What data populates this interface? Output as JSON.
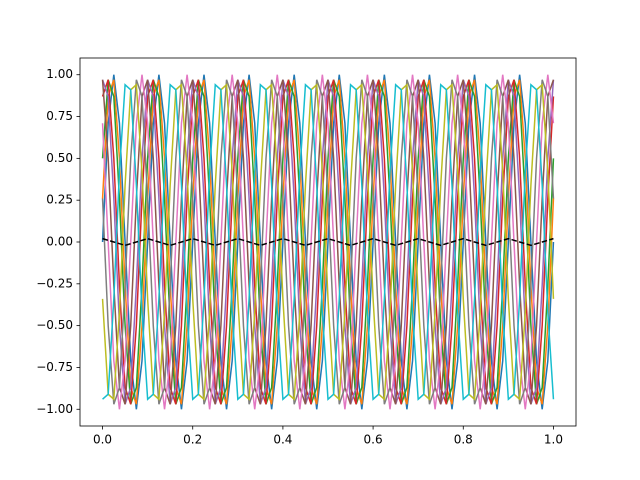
{
  "chart_data": {
    "type": "line",
    "x": [
      0,
      0.0125,
      0.025,
      0.0375,
      0.05,
      0.0625,
      0.075,
      0.0875,
      0.1,
      0.1125,
      0.125,
      0.1375,
      0.15,
      0.1625,
      0.175,
      0.1875,
      0.2,
      0.2125,
      0.225,
      0.2375,
      0.25,
      0.2625,
      0.275,
      0.2875,
      0.3,
      0.3125,
      0.325,
      0.3375,
      0.35,
      0.3625,
      0.375,
      0.3875,
      0.4,
      0.4125,
      0.425,
      0.4375,
      0.45,
      0.4625,
      0.475,
      0.4875,
      0.5,
      0.5125,
      0.525,
      0.5375,
      0.55,
      0.5625,
      0.575,
      0.5875,
      0.6,
      0.6125,
      0.625,
      0.6375,
      0.65,
      0.6625,
      0.675,
      0.6875,
      0.7,
      0.7125,
      0.725,
      0.7375,
      0.75,
      0.7625,
      0.775,
      0.7875,
      0.8,
      0.8125,
      0.825,
      0.8375,
      0.85,
      0.8625,
      0.875,
      0.8875,
      0.9,
      0.9125,
      0.925,
      0.9375,
      0.95,
      0.9625,
      0.975,
      0.9875,
      1
    ],
    "series": [
      {
        "color": "#1f77b4",
        "values": [
          0,
          0.71,
          1,
          0.71,
          0,
          -0.71,
          -1,
          -0.71,
          0,
          0.71,
          1,
          0.71,
          0,
          -0.71,
          -1,
          -0.71,
          0,
          0.71,
          1,
          0.71,
          0,
          -0.71,
          -1,
          -0.71,
          0,
          0.71,
          1,
          0.71,
          0,
          -0.71,
          -1,
          -0.71,
          0,
          0.71,
          1,
          0.71,
          0,
          -0.71,
          -1,
          -0.71,
          0,
          0.71,
          1,
          0.71,
          0,
          -0.71,
          -1,
          -0.71,
          0,
          0.71,
          1,
          0.71,
          0,
          -0.71,
          -1,
          -0.71,
          0,
          0.71,
          1,
          0.71,
          0,
          -0.71,
          -1,
          -0.71,
          0,
          0.71,
          1,
          0.71,
          0,
          -0.71,
          -1,
          -0.71,
          0,
          0.71,
          1,
          0.71,
          0,
          -0.71,
          -1,
          -0.71,
          0
        ]
      },
      {
        "color": "#ff7f0e",
        "values": [
          0.26,
          0.87,
          0.97,
          0.5,
          -0.26,
          -0.87,
          -0.97,
          -0.5,
          0.26,
          0.87,
          0.97,
          0.5,
          -0.26,
          -0.87,
          -0.97,
          -0.5,
          0.26,
          0.87,
          0.97,
          0.5,
          -0.26,
          -0.87,
          -0.97,
          -0.5,
          0.26,
          0.87,
          0.97,
          0.5,
          -0.26,
          -0.87,
          -0.97,
          -0.5,
          0.26,
          0.87,
          0.97,
          0.5,
          -0.26,
          -0.87,
          -0.97,
          -0.5,
          0.26,
          0.87,
          0.97,
          0.5,
          -0.26,
          -0.87,
          -0.97,
          -0.5,
          0.26,
          0.87,
          0.97,
          0.5,
          -0.26,
          -0.87,
          -0.97,
          -0.5,
          0.26,
          0.87,
          0.97,
          0.5,
          -0.26,
          -0.87,
          -0.97,
          -0.5,
          0.26,
          0.87,
          0.97,
          0.5,
          -0.26,
          -0.87,
          -0.97,
          -0.5,
          0.26,
          0.87,
          0.97,
          0.5,
          -0.26,
          -0.87,
          -0.97,
          -0.5,
          0.26
        ]
      },
      {
        "color": "#2ca02c",
        "values": [
          0.5,
          0.97,
          0.87,
          0.26,
          -0.5,
          -0.97,
          -0.87,
          -0.26,
          0.5,
          0.97,
          0.87,
          0.26,
          -0.5,
          -0.97,
          -0.87,
          -0.26,
          0.5,
          0.97,
          0.87,
          0.26,
          -0.5,
          -0.97,
          -0.87,
          -0.26,
          0.5,
          0.97,
          0.87,
          0.26,
          -0.5,
          -0.97,
          -0.87,
          -0.26,
          0.5,
          0.97,
          0.87,
          0.26,
          -0.5,
          -0.97,
          -0.87,
          -0.26,
          0.5,
          0.97,
          0.87,
          0.26,
          -0.5,
          -0.97,
          -0.87,
          -0.26,
          0.5,
          0.97,
          0.87,
          0.26,
          -0.5,
          -0.97,
          -0.87,
          -0.26,
          0.5,
          0.97,
          0.87,
          0.26,
          -0.5,
          -0.97,
          -0.87,
          -0.26,
          0.5,
          0.97,
          0.87,
          0.26,
          -0.5,
          -0.97,
          -0.87,
          -0.26,
          0.5,
          0.97,
          0.87,
          0.26,
          -0.5,
          -0.97,
          -0.87,
          -0.26,
          0.5
        ]
      },
      {
        "color": "#d62728",
        "values": [
          0.87,
          0.97,
          0.5,
          -0.26,
          -0.87,
          -0.97,
          -0.5,
          0.26,
          0.87,
          0.97,
          0.5,
          -0.26,
          -0.87,
          -0.97,
          -0.5,
          0.26,
          0.87,
          0.97,
          0.5,
          -0.26,
          -0.87,
          -0.97,
          -0.5,
          0.26,
          0.87,
          0.97,
          0.5,
          -0.26,
          -0.87,
          -0.97,
          -0.5,
          0.26,
          0.87,
          0.97,
          0.5,
          -0.26,
          -0.87,
          -0.97,
          -0.5,
          0.26,
          0.87,
          0.97,
          0.5,
          -0.26,
          -0.87,
          -0.97,
          -0.5,
          0.26,
          0.87,
          0.97,
          0.5,
          -0.26,
          -0.87,
          -0.97,
          -0.5,
          0.26,
          0.87,
          0.97,
          0.5,
          -0.26,
          -0.87,
          -0.97,
          -0.5,
          0.26,
          0.87,
          0.97,
          0.5,
          -0.26,
          -0.87,
          -0.97,
          -0.5,
          0.26,
          0.87,
          0.97,
          0.5,
          -0.26,
          -0.87,
          -0.97,
          -0.5,
          0.26,
          0.87
        ]
      },
      {
        "color": "#9467bd",
        "values": [
          0.97,
          0.87,
          0.26,
          -0.5,
          -0.97,
          -0.87,
          -0.26,
          0.5,
          0.97,
          0.87,
          0.26,
          -0.5,
          -0.97,
          -0.87,
          -0.26,
          0.5,
          0.97,
          0.87,
          0.26,
          -0.5,
          -0.97,
          -0.87,
          -0.26,
          0.5,
          0.97,
          0.87,
          0.26,
          -0.5,
          -0.97,
          -0.87,
          -0.26,
          0.5,
          0.97,
          0.87,
          0.26,
          -0.5,
          -0.97,
          -0.87,
          -0.26,
          0.5,
          0.97,
          0.87,
          0.26,
          -0.5,
          -0.97,
          -0.87,
          -0.26,
          0.5,
          0.97,
          0.87,
          0.26,
          -0.5,
          -0.97,
          -0.87,
          -0.26,
          0.5,
          0.97,
          0.87,
          0.26,
          -0.5,
          -0.97,
          -0.87,
          -0.26,
          0.5,
          0.97,
          0.87,
          0.26,
          -0.5,
          -0.97,
          -0.87,
          -0.26,
          0.5,
          0.97,
          0.87,
          0.26,
          -0.5,
          -0.97,
          -0.87,
          -0.26,
          0.5,
          0.97
        ]
      },
      {
        "color": "#8c564b",
        "values": [
          0.97,
          0.5,
          -0.26,
          -0.87,
          -0.97,
          -0.5,
          0.26,
          0.87,
          0.97,
          0.5,
          -0.26,
          -0.87,
          -0.97,
          -0.5,
          0.26,
          0.87,
          0.97,
          0.5,
          -0.26,
          -0.87,
          -0.97,
          -0.5,
          0.26,
          0.87,
          0.97,
          0.5,
          -0.26,
          -0.87,
          -0.97,
          -0.5,
          0.26,
          0.87,
          0.97,
          0.5,
          -0.26,
          -0.87,
          -0.97,
          -0.5,
          0.26,
          0.87,
          0.97,
          0.5,
          -0.26,
          -0.87,
          -0.97,
          -0.5,
          0.26,
          0.87,
          0.97,
          0.5,
          -0.26,
          -0.87,
          -0.97,
          -0.5,
          0.26,
          0.87,
          0.97,
          0.5,
          -0.26,
          -0.87,
          -0.97,
          -0.5,
          0.26,
          0.87,
          0.97,
          0.5,
          -0.26,
          -0.87,
          -0.97,
          -0.5,
          0.26,
          0.87,
          0.97,
          0.5,
          -0.26,
          -0.87,
          -0.97,
          -0.5,
          0.26,
          0.87,
          0.97
        ]
      },
      {
        "color": "#e377c2",
        "values": [
          0.71,
          0,
          -0.71,
          -1,
          -0.71,
          0,
          0.71,
          1,
          0.71,
          0,
          -0.71,
          -1,
          -0.71,
          0,
          0.71,
          1,
          0.71,
          0,
          -0.71,
          -1,
          -0.71,
          0,
          0.71,
          1,
          0.71,
          0,
          -0.71,
          -1,
          -0.71,
          0,
          0.71,
          1,
          0.71,
          0,
          -0.71,
          -1,
          -0.71,
          0,
          0.71,
          1,
          0.71,
          0,
          -0.71,
          -1,
          -0.71,
          0,
          0.71,
          1,
          0.71,
          0,
          -0.71,
          -1,
          -0.71,
          0,
          0.71,
          1,
          0.71,
          0,
          -0.71,
          -1,
          -0.71,
          0,
          0.71,
          1,
          0.71,
          0,
          -0.71,
          -1,
          -0.71,
          0,
          0.71,
          1,
          0.71,
          0,
          -0.71,
          -1,
          -0.71,
          0,
          0.71,
          1,
          0.71
        ]
      },
      {
        "color": "#7f7f7f",
        "values": [
          0.26,
          -0.5,
          -0.97,
          -0.87,
          -0.26,
          0.5,
          0.97,
          0.87,
          0.26,
          -0.5,
          -0.97,
          -0.87,
          -0.26,
          0.5,
          0.97,
          0.87,
          0.26,
          -0.5,
          -0.97,
          -0.87,
          -0.26,
          0.5,
          0.97,
          0.87,
          0.26,
          -0.5,
          -0.97,
          -0.87,
          -0.26,
          0.5,
          0.97,
          0.87,
          0.26,
          -0.5,
          -0.97,
          -0.87,
          -0.26,
          0.5,
          0.97,
          0.87,
          0.26,
          -0.5,
          -0.97,
          -0.87,
          -0.26,
          0.5,
          0.97,
          0.87,
          0.26,
          -0.5,
          -0.97,
          -0.87,
          -0.26,
          0.5,
          0.97,
          0.87,
          0.26,
          -0.5,
          -0.97,
          -0.87,
          -0.26,
          0.5,
          0.97,
          0.87,
          0.26,
          -0.5,
          -0.97,
          -0.87,
          -0.26,
          0.5,
          0.97,
          0.87,
          0.26,
          -0.5,
          -0.97,
          -0.87,
          -0.26,
          0.5,
          0.97,
          0.87,
          0.26
        ]
      },
      {
        "color": "#bcbd22",
        "values": [
          -0.34,
          -0.91,
          -0.94,
          -0.42,
          0.34,
          0.91,
          0.94,
          0.42,
          -0.34,
          -0.91,
          -0.94,
          -0.42,
          0.34,
          0.91,
          0.94,
          0.42,
          -0.34,
          -0.91,
          -0.94,
          -0.42,
          0.34,
          0.91,
          0.94,
          0.42,
          -0.34,
          -0.91,
          -0.94,
          -0.42,
          0.34,
          0.91,
          0.94,
          0.42,
          -0.34,
          -0.91,
          -0.94,
          -0.42,
          0.34,
          0.91,
          0.94,
          0.42,
          -0.34,
          -0.91,
          -0.94,
          -0.42,
          0.34,
          0.91,
          0.94,
          0.42,
          -0.34,
          -0.91,
          -0.94,
          -0.42,
          0.34,
          0.91,
          0.94,
          0.42,
          -0.34,
          -0.91,
          -0.94,
          -0.42,
          0.34,
          0.91,
          0.94,
          0.42,
          -0.34,
          -0.91,
          -0.94,
          -0.42,
          0.34,
          0.91,
          0.94,
          0.42,
          -0.34,
          -0.91,
          -0.94,
          -0.42,
          0.34,
          0.91,
          0.94,
          0.42,
          -0.34
        ]
      },
      {
        "color": "#17becf",
        "values": [
          -0.94,
          -0.91,
          -0.34,
          0.42,
          0.94,
          0.91,
          0.34,
          -0.42,
          -0.94,
          -0.91,
          -0.34,
          0.42,
          0.94,
          0.91,
          0.34,
          -0.42,
          -0.94,
          -0.91,
          -0.34,
          0.42,
          0.94,
          0.91,
          0.34,
          -0.42,
          -0.94,
          -0.91,
          -0.34,
          0.42,
          0.94,
          0.91,
          0.34,
          -0.42,
          -0.94,
          -0.91,
          -0.34,
          0.42,
          0.94,
          0.91,
          0.34,
          -0.42,
          -0.94,
          -0.91,
          -0.34,
          0.42,
          0.94,
          0.91,
          0.34,
          -0.42,
          -0.94,
          -0.91,
          -0.34,
          0.42,
          0.94,
          0.91,
          0.34,
          -0.42,
          -0.94,
          -0.91,
          -0.34,
          0.42,
          0.94,
          0.91,
          0.34,
          -0.42,
          -0.94,
          -0.91,
          -0.34,
          0.42,
          0.94,
          0.91,
          0.34,
          -0.42,
          -0.94,
          -0.91,
          -0.34,
          0.42,
          0.94,
          0.91,
          0.34,
          -0.42,
          -0.94
        ]
      },
      {
        "color": "#000000",
        "dashed": true,
        "values": [
          0.02,
          0.01,
          0,
          -0.01,
          -0.02,
          -0.01,
          0,
          0.01,
          0.02,
          0.01,
          0,
          -0.01,
          -0.02,
          -0.01,
          0,
          0.01,
          0.02,
          0.01,
          0,
          -0.01,
          -0.02,
          -0.01,
          0,
          0.01,
          0.02,
          0.01,
          0,
          -0.01,
          -0.02,
          -0.01,
          0,
          0.01,
          0.02,
          0.01,
          0,
          -0.01,
          -0.02,
          -0.01,
          0,
          0.01,
          0.02,
          0.01,
          0,
          -0.01,
          -0.02,
          -0.01,
          0,
          0.01,
          0.02,
          0.01,
          0,
          -0.01,
          -0.02,
          -0.01,
          0,
          0.01,
          0.02,
          0.01,
          0,
          -0.01,
          -0.02,
          -0.01,
          0,
          0.01,
          0.02,
          0.01,
          0,
          -0.01,
          -0.02,
          -0.01,
          0,
          0.01,
          0.02,
          0.01,
          0,
          -0.01,
          -0.02,
          -0.01,
          0,
          0.01,
          0.02
        ]
      }
    ],
    "xlim": [
      -0.05,
      1.05
    ],
    "ylim": [
      -1.1,
      1.1
    ],
    "xticks": [
      {
        "value": 0,
        "label": "0.0"
      },
      {
        "value": 0.2,
        "label": "0.2"
      },
      {
        "value": 0.4,
        "label": "0.4"
      },
      {
        "value": 0.6,
        "label": "0.6"
      },
      {
        "value": 0.8,
        "label": "0.8"
      },
      {
        "value": 1,
        "label": "1.0"
      }
    ],
    "yticks": [
      {
        "value": -1,
        "label": "−1.00"
      },
      {
        "value": -0.75,
        "label": "−0.75"
      },
      {
        "value": -0.5,
        "label": "−0.50"
      },
      {
        "value": -0.25,
        "label": "−0.25"
      },
      {
        "value": 0,
        "label": "0.00"
      },
      {
        "value": 0.25,
        "label": "0.25"
      },
      {
        "value": 0.5,
        "label": "0.50"
      },
      {
        "value": 0.75,
        "label": "0.75"
      },
      {
        "value": 1,
        "label": "1.00"
      }
    ],
    "grid": false
  }
}
